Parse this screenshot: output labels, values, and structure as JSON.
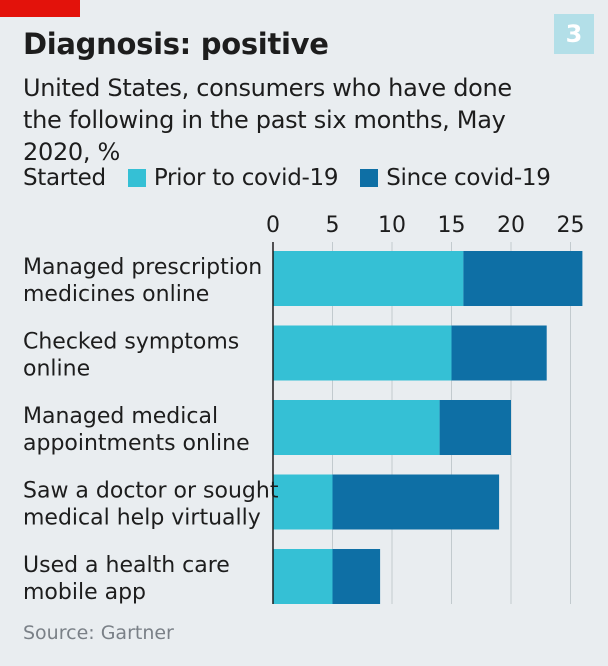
{
  "header": {
    "title": "Diagnosis: positive",
    "subtitle": "United States, consumers who have done the following in the past six months, May 2020, %",
    "chart_number": "3"
  },
  "legend": {
    "heading": "Started",
    "items": [
      "Prior to covid-19",
      "Since covid-19"
    ]
  },
  "source": "Source: Gartner",
  "colors": {
    "prior": "#35c0d5",
    "since": "#0e6fa5",
    "accent_red": "#e3120b",
    "background": "#e9edf0"
  },
  "chart_data": {
    "type": "bar",
    "orientation": "horizontal",
    "stacked": true,
    "title": "Diagnosis: positive",
    "categories": [
      [
        "Managed prescription",
        "medicines online"
      ],
      [
        "Checked symptoms",
        "online"
      ],
      [
        "Managed medical",
        "appointments online"
      ],
      [
        "Saw a doctor or sought",
        "medical help virtually"
      ],
      [
        "Used a health care",
        "mobile app"
      ]
    ],
    "series": [
      {
        "name": "Prior to covid-19",
        "values": [
          16,
          15,
          14,
          5,
          5
        ]
      },
      {
        "name": "Since covid-19",
        "values": [
          10,
          8,
          6,
          14,
          4
        ]
      }
    ],
    "xlim": [
      0,
      26
    ],
    "xticks": [
      0,
      5,
      10,
      15,
      20,
      25
    ],
    "grid": true,
    "legend_position": "top"
  }
}
